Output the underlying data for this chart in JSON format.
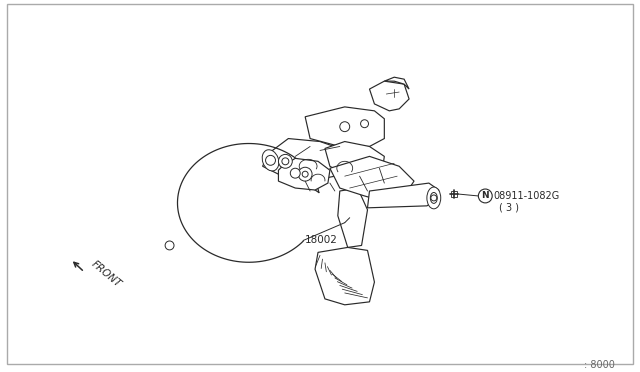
{
  "background_color": "#ffffff",
  "border_color": "#aaaaaa",
  "line_color": "#2a2a2a",
  "label_18002": "18002",
  "label_part": "08911-1082G",
  "label_N": "N",
  "label_part2": "( 3 )",
  "label_front": "FRONT",
  "page_ref": ": 8000",
  "fig_width": 6.4,
  "fig_height": 3.72,
  "dpi": 100
}
